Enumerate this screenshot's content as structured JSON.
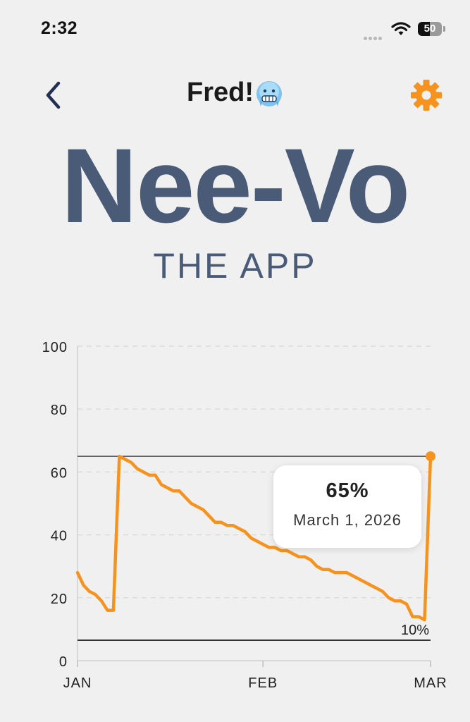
{
  "status_bar": {
    "time": "2:32",
    "battery_percent": 50,
    "battery_label": "50",
    "icons": [
      "signal-dots-icon",
      "wifi-icon",
      "battery-icon"
    ]
  },
  "header": {
    "title": "Fred!",
    "title_emoji": "freezing-face-emoji",
    "back_icon": "chevron-left-icon",
    "settings_icon": "gear-icon",
    "accent_color": "#f5931e"
  },
  "app": {
    "logo": "Nee-Vo",
    "tagline": "THE APP",
    "brand_color": "#4a5b78"
  },
  "chart_data": {
    "type": "line",
    "x_tick_labels": [
      "JAN",
      "FEB",
      "MAR"
    ],
    "y_tick_labels": [
      "0",
      "20",
      "40",
      "60",
      "80",
      "100"
    ],
    "ylim": [
      0,
      100
    ],
    "xlim": [
      "2026-01-01",
      "2026-03-01"
    ],
    "grid": true,
    "line_color": "#f5931e",
    "reference_lines": [
      {
        "y": 65,
        "label": ""
      },
      {
        "y": 6.5,
        "label": "10%"
      }
    ],
    "series": [
      {
        "x": [
          "2026-01-01",
          "2026-01-02",
          "2026-01-03",
          "2026-01-04",
          "2026-01-05",
          "2026-01-06",
          "2026-01-07",
          "2026-01-08",
          "2026-01-09",
          "2026-01-10",
          "2026-01-11",
          "2026-01-12",
          "2026-01-13",
          "2026-01-14",
          "2026-01-15",
          "2026-01-16",
          "2026-01-17",
          "2026-01-18",
          "2026-01-19",
          "2026-01-20",
          "2026-01-21",
          "2026-01-22",
          "2026-01-23",
          "2026-01-24",
          "2026-01-25",
          "2026-01-26",
          "2026-01-27",
          "2026-01-28",
          "2026-01-29",
          "2026-01-30",
          "2026-01-31",
          "2026-02-01",
          "2026-02-02",
          "2026-02-03",
          "2026-02-04",
          "2026-02-05",
          "2026-02-06",
          "2026-02-07",
          "2026-02-08",
          "2026-02-09",
          "2026-02-10",
          "2026-02-11",
          "2026-02-12",
          "2026-02-13",
          "2026-02-14",
          "2026-02-15",
          "2026-02-16",
          "2026-02-17",
          "2026-02-18",
          "2026-02-19",
          "2026-02-20",
          "2026-02-21",
          "2026-02-22",
          "2026-02-23",
          "2026-02-24",
          "2026-02-25",
          "2026-02-26",
          "2026-02-27",
          "2026-02-28",
          "2026-03-01"
        ],
        "values": [
          28,
          24,
          22,
          21,
          19,
          16,
          16,
          65,
          64,
          63,
          61,
          60,
          59,
          59,
          56,
          55,
          54,
          54,
          52,
          50,
          49,
          48,
          46,
          44,
          44,
          43,
          43,
          42,
          41,
          39,
          38,
          37,
          36,
          36,
          35,
          35,
          34,
          33,
          33,
          32,
          30,
          29,
          29,
          28,
          28,
          28,
          27,
          26,
          25,
          24,
          23,
          22,
          20,
          19,
          19,
          18,
          14,
          14,
          13,
          65
        ]
      }
    ],
    "highlight": {
      "x": "2026-03-01",
      "y": 65
    }
  },
  "tooltip": {
    "value": "65%",
    "date": "March 1, 2026"
  }
}
